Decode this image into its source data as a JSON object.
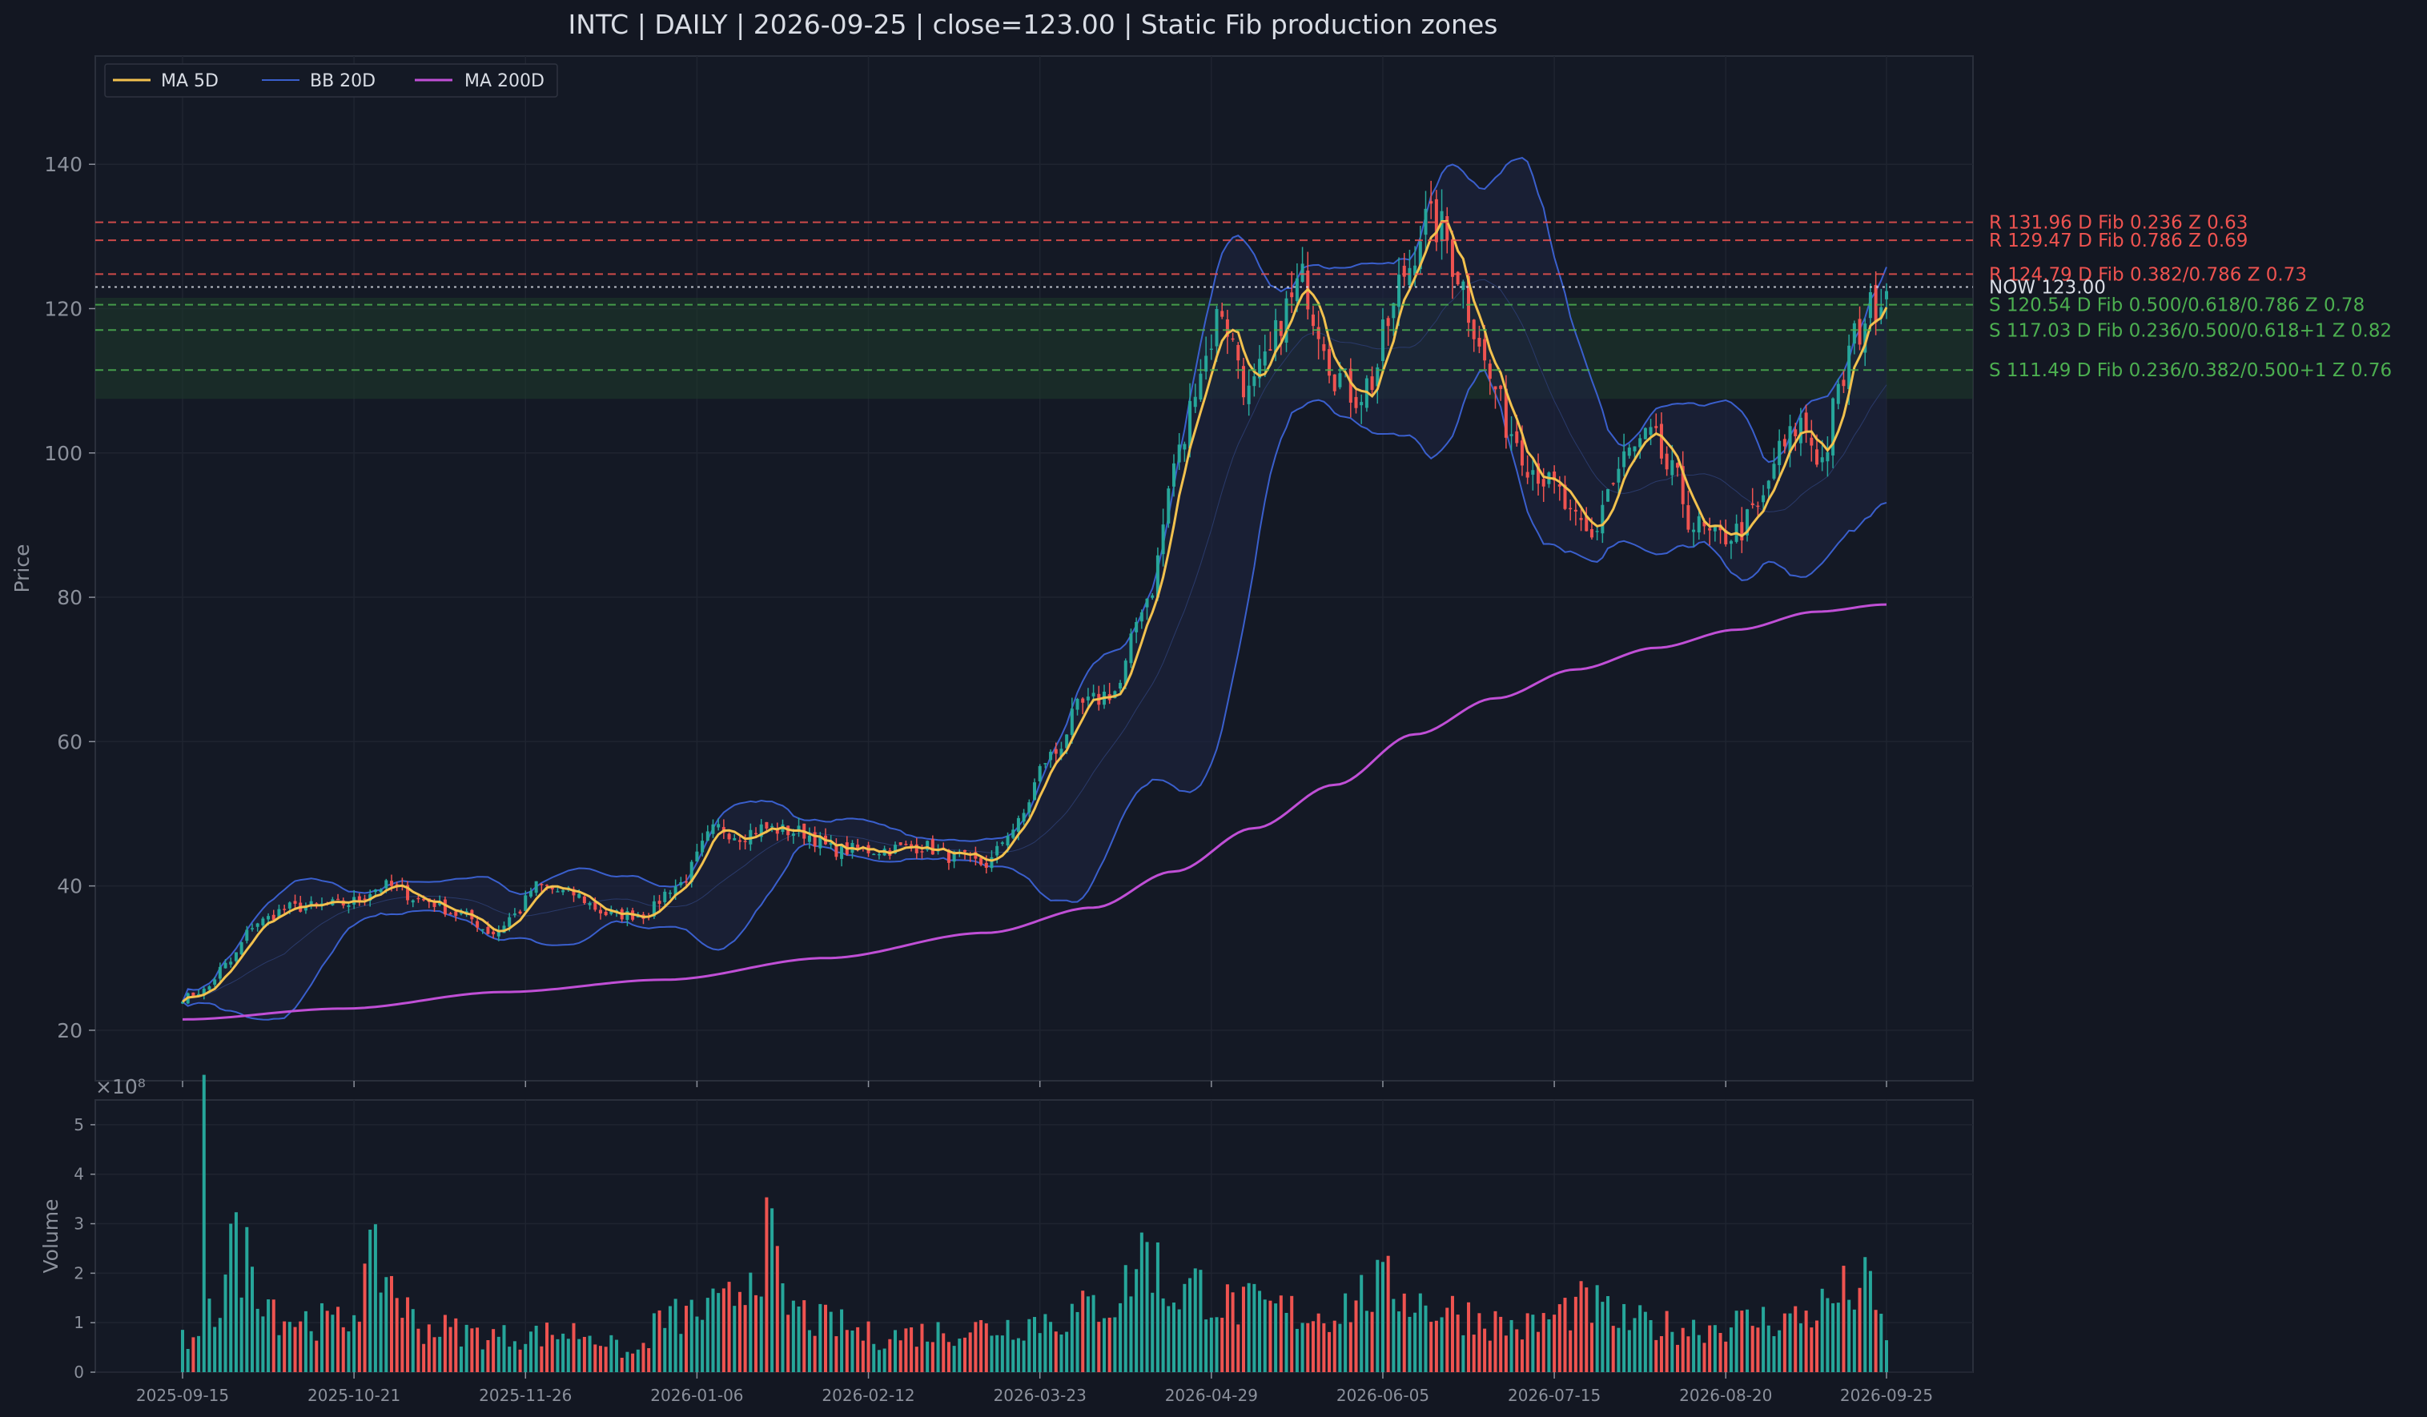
{
  "chart_data": {
    "type": "candlestick",
    "title": "INTC  |  DAILY  |  2026-09-25  |  close=123.00  |  Static Fib production zones",
    "ticker": "INTC",
    "interval": "DAILY",
    "date": "2026-09-25",
    "close": 123.0,
    "price_panel": {
      "ylabel": "Price",
      "ylim": [
        13,
        155
      ],
      "yticks": [
        20,
        40,
        60,
        80,
        100,
        120,
        140
      ],
      "grid": true
    },
    "volume_panel": {
      "ylabel": "Volume",
      "scale_label": "×10⁸",
      "ylim": [
        0,
        5.5
      ],
      "yticks": [
        0,
        1,
        2,
        3,
        4,
        5
      ]
    },
    "x_tick_labels": [
      "2025-09-15",
      "2025-10-21",
      "2025-11-26",
      "2026-01-06",
      "2026-02-12",
      "2026-03-23",
      "2026-04-29",
      "2026-06-05",
      "2026-07-15",
      "2026-08-20",
      "2026-09-25"
    ],
    "legend": {
      "placement": "top-left",
      "entries": [
        {
          "label": "MA 5D",
          "color": "#f2c14e"
        },
        {
          "label": "BB 20D",
          "color": "#3a5fcd"
        },
        {
          "label": "MA 200D",
          "color": "#c04fd6"
        }
      ]
    },
    "colors": {
      "up": "#26a69a",
      "down": "#ef5350",
      "ma5": "#f2c14e",
      "bb": "#3a5fcd",
      "ma200": "#c04fd6",
      "resistance": "#ef5350",
      "support": "#4caf50",
      "now": "#d9dde5"
    },
    "levels": [
      {
        "kind": "R",
        "price": 131.96,
        "label": "R 131.96  D  Fib 0.236  Z 0.63"
      },
      {
        "kind": "R",
        "price": 129.47,
        "label": "R 129.47  D  Fib 0.786  Z 0.69"
      },
      {
        "kind": "R",
        "price": 124.79,
        "label": "R 124.79  D  Fib 0.382/0.786  Z 0.73"
      },
      {
        "kind": "NOW",
        "price": 123.0,
        "label": "NOW 123.00"
      },
      {
        "kind": "S",
        "price": 120.54,
        "label": "S 120.54  D  Fib 0.500/0.618/0.786  Z 0.78"
      },
      {
        "kind": "S",
        "price": 117.03,
        "label": "S 117.03  D  Fib 0.236/0.500/0.618+1  Z 0.82"
      },
      {
        "kind": "S",
        "price": 111.49,
        "label": "S 111.49  D  Fib 0.236/0.382/0.500+1  Z 0.76"
      }
    ],
    "support_zone": [
      107.5,
      121.5
    ],
    "series_keypoints": {
      "close": [
        [
          0,
          24.5
        ],
        [
          4,
          25.5
        ],
        [
          8,
          29
        ],
        [
          14,
          35
        ],
        [
          20,
          37
        ],
        [
          30,
          37.5
        ],
        [
          38,
          40
        ],
        [
          45,
          38
        ],
        [
          52,
          36
        ],
        [
          58,
          33.5
        ],
        [
          62,
          36
        ],
        [
          66,
          40
        ],
        [
          72,
          39
        ],
        [
          80,
          36
        ],
        [
          86,
          36
        ],
        [
          92,
          40
        ],
        [
          100,
          48
        ],
        [
          104,
          47
        ],
        [
          108,
          48
        ],
        [
          115,
          47.5
        ],
        [
          122,
          45
        ],
        [
          130,
          45
        ],
        [
          138,
          45.5
        ],
        [
          144,
          44
        ],
        [
          150,
          43
        ],
        [
          155,
          48
        ],
        [
          162,
          58
        ],
        [
          168,
          65
        ],
        [
          174,
          67
        ],
        [
          180,
          80
        ],
        [
          186,
          100
        ],
        [
          190,
          112
        ],
        [
          194,
          120
        ],
        [
          196,
          115
        ],
        [
          199,
          108
        ],
        [
          202,
          112
        ],
        [
          206,
          120
        ],
        [
          209,
          124
        ],
        [
          212,
          118
        ],
        [
          215,
          111
        ],
        [
          219,
          108
        ],
        [
          222,
          110
        ],
        [
          225,
          118
        ],
        [
          228,
          125
        ],
        [
          232,
          132
        ],
        [
          235,
          131
        ],
        [
          238,
          125
        ],
        [
          241,
          118
        ],
        [
          244,
          110
        ],
        [
          248,
          103
        ],
        [
          252,
          98
        ],
        [
          256,
          95
        ],
        [
          260,
          90
        ],
        [
          263,
          88
        ],
        [
          266,
          95
        ],
        [
          270,
          100
        ],
        [
          274,
          102
        ],
        [
          278,
          97
        ],
        [
          282,
          90
        ],
        [
          286,
          88
        ],
        [
          290,
          89
        ],
        [
          294,
          92
        ],
        [
          298,
          100
        ],
        [
          302,
          104
        ],
        [
          306,
          99
        ],
        [
          309,
          108
        ],
        [
          312,
          116
        ],
        [
          315,
          120
        ],
        [
          318,
          123
        ]
      ],
      "ma200": [
        [
          0,
          21.5
        ],
        [
          30,
          23
        ],
        [
          60,
          25.3
        ],
        [
          90,
          27
        ],
        [
          120,
          30
        ],
        [
          150,
          33.5
        ],
        [
          170,
          37
        ],
        [
          185,
          42
        ],
        [
          200,
          48
        ],
        [
          215,
          54
        ],
        [
          230,
          61
        ],
        [
          245,
          66
        ],
        [
          260,
          70
        ],
        [
          275,
          73
        ],
        [
          290,
          75.5
        ],
        [
          305,
          78
        ],
        [
          318,
          79
        ]
      ]
    },
    "volume_keypoints": [
      [
        0,
        0.7
      ],
      [
        3,
        0.6
      ],
      [
        4,
        5.2
      ],
      [
        5,
        2.2
      ],
      [
        6,
        1.3
      ],
      [
        9,
        2.9
      ],
      [
        10,
        2.7
      ],
      [
        20,
        1.2
      ],
      [
        30,
        1.1
      ],
      [
        36,
        2.4
      ],
      [
        45,
        1.0
      ],
      [
        60,
        0.8
      ],
      [
        75,
        0.9
      ],
      [
        84,
        0.4
      ],
      [
        90,
        1.2
      ],
      [
        100,
        1.4
      ],
      [
        110,
        2.9
      ],
      [
        112,
        1.5
      ],
      [
        120,
        1.1
      ],
      [
        130,
        0.8
      ],
      [
        140,
        0.9
      ],
      [
        150,
        1.0
      ],
      [
        163,
        1.2
      ],
      [
        174,
        1.6
      ],
      [
        180,
        2.8
      ],
      [
        184,
        1.8
      ],
      [
        190,
        1.9
      ],
      [
        195,
        1.5
      ],
      [
        212,
        1.3
      ],
      [
        225,
        1.9
      ],
      [
        235,
        1.4
      ],
      [
        250,
        1.0
      ],
      [
        262,
        1.5
      ],
      [
        270,
        1.1
      ],
      [
        280,
        1.0
      ],
      [
        300,
        1.2
      ],
      [
        314,
        1.9
      ],
      [
        318,
        0.9
      ]
    ],
    "n_bars": 319
  }
}
